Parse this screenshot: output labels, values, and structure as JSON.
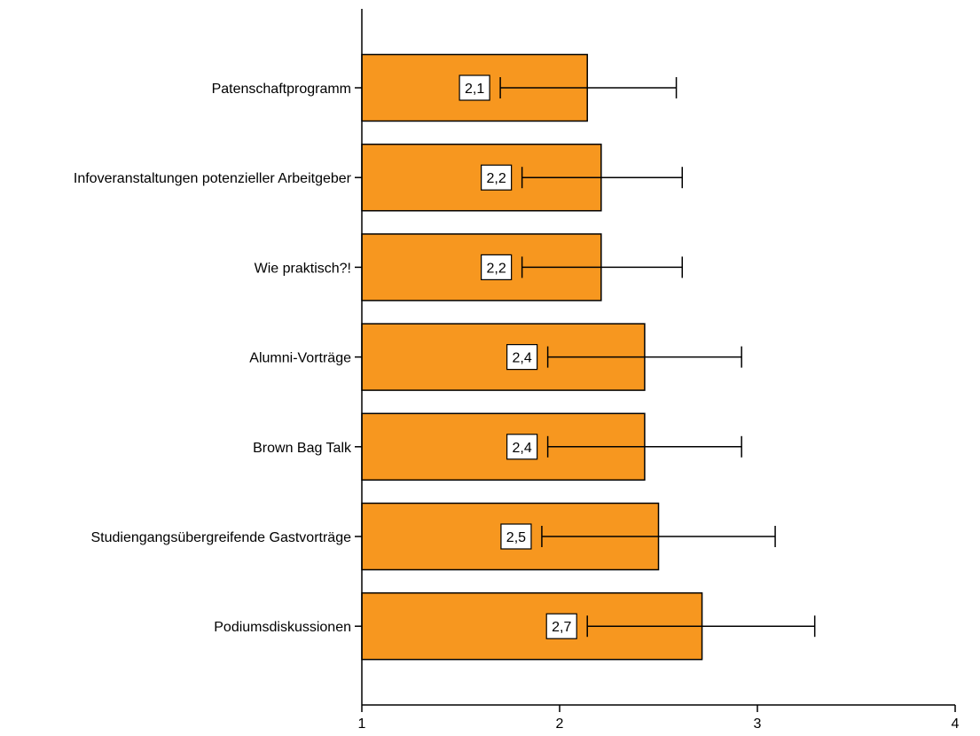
{
  "chart_data": {
    "type": "bar",
    "orientation": "horizontal",
    "title": "",
    "xlabel": "",
    "ylabel": "",
    "xlim": [
      1,
      4
    ],
    "x_ticks": [
      1,
      2,
      3,
      4
    ],
    "x_tick_labels": [
      "1",
      "2",
      "3",
      "4"
    ],
    "grid": false,
    "legend": "none",
    "categories": [
      "Patenschaftprogramm",
      "Infoveranstaltungen potenzieller Arbeitgeber",
      "Wie praktisch?!",
      "Alumni-Vorträge",
      "Brown Bag Talk",
      "Studiengangsübergreifende Gastvorträge",
      "Podiumsdiskussionen"
    ],
    "values": [
      2.14,
      2.21,
      2.21,
      2.43,
      2.43,
      2.5,
      2.72
    ],
    "value_labels": [
      "2,1",
      "2,2",
      "2,2",
      "2,4",
      "2,4",
      "2,5",
      "2,7"
    ],
    "error_low": [
      1.7,
      1.81,
      1.81,
      1.94,
      1.94,
      1.91,
      2.14
    ],
    "error_high": [
      2.59,
      2.62,
      2.62,
      2.92,
      2.92,
      3.09,
      3.29
    ],
    "colors": {
      "bar_fill": "#f7971f",
      "bar_stroke": "#000000",
      "label_box_fill": "#ffffff",
      "axis": "#000000"
    }
  }
}
